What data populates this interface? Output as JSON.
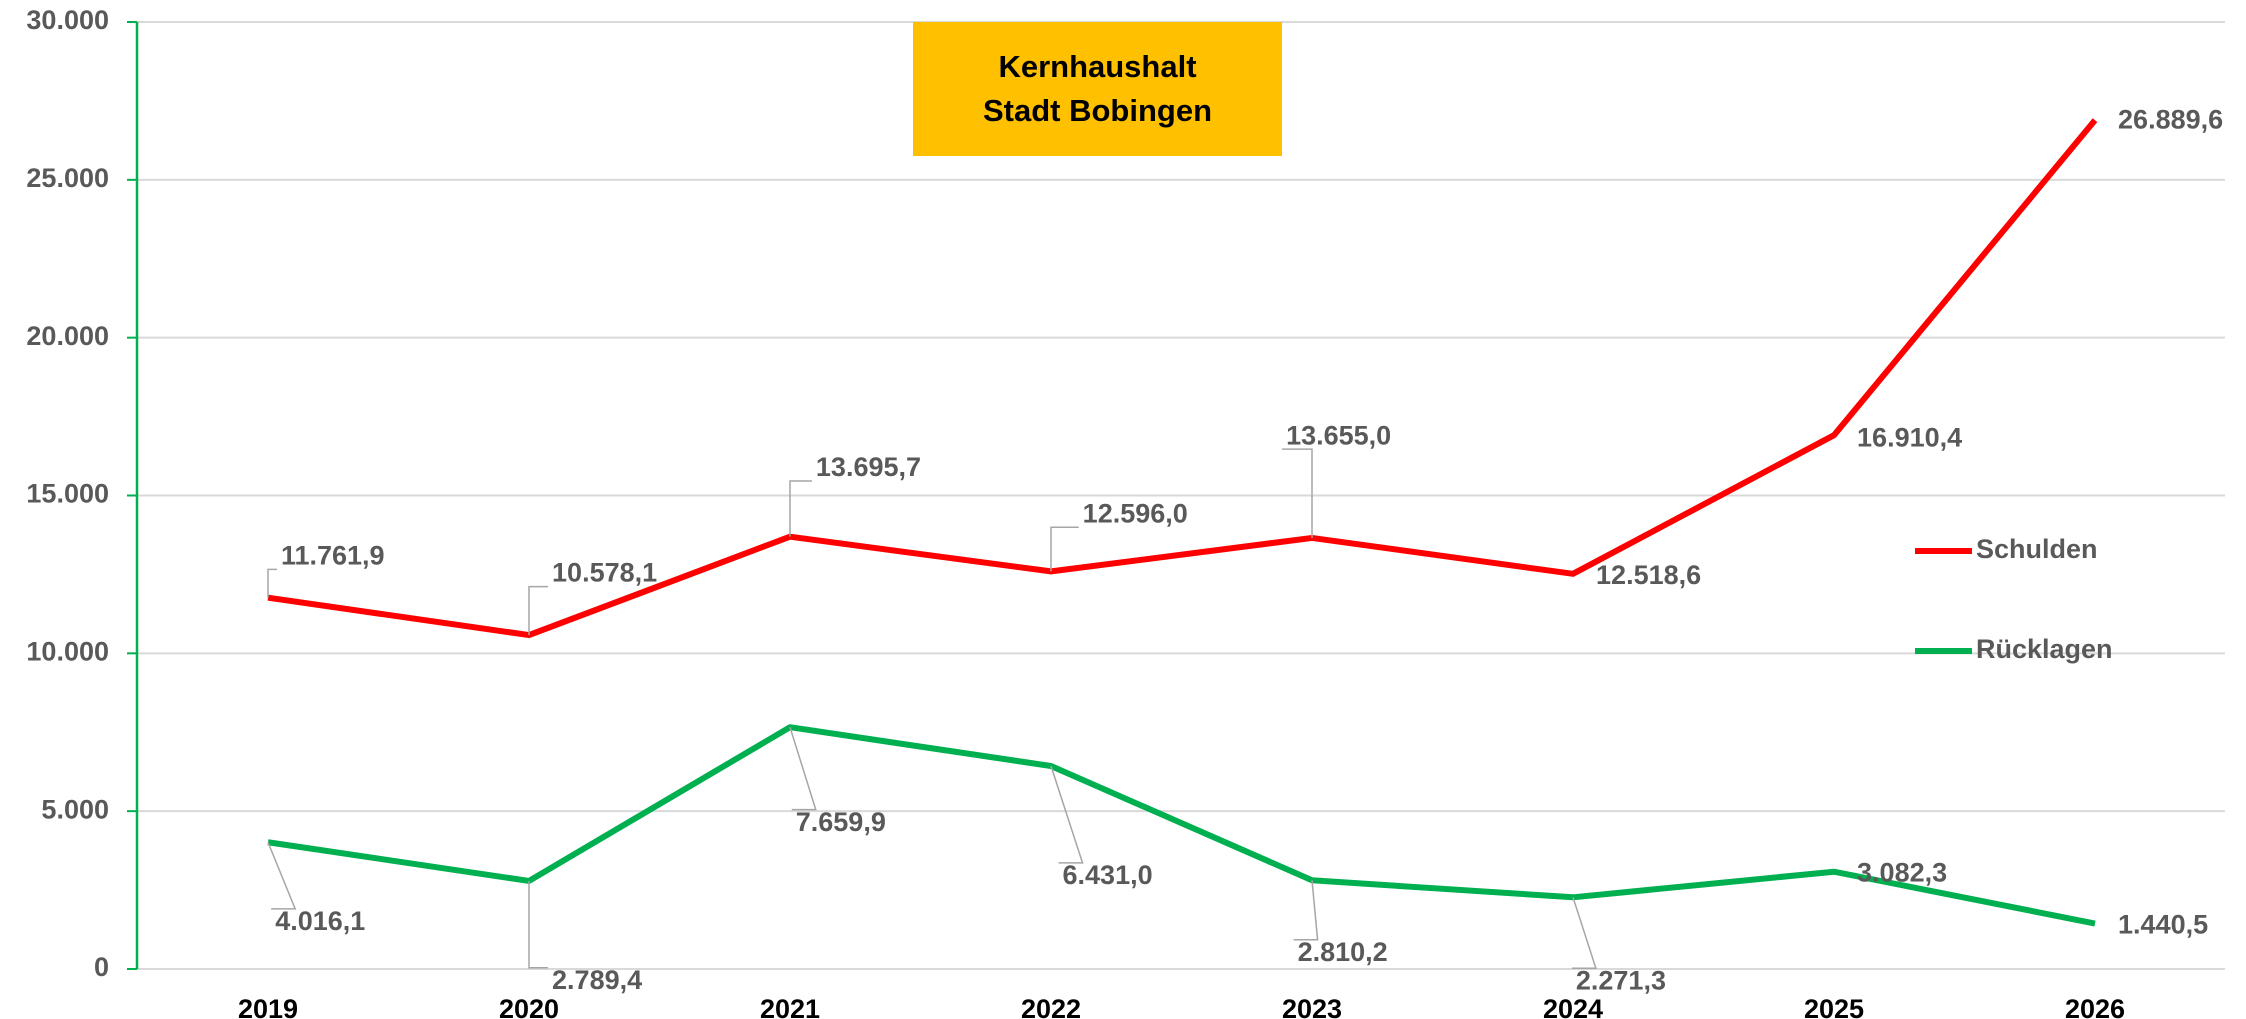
{
  "chart_data": {
    "type": "line",
    "title": "Kernhaushalt Stadt Bobingen",
    "categories": [
      "2019",
      "2020",
      "2021",
      "2022",
      "2023",
      "2024",
      "2025",
      "2026"
    ],
    "series": [
      {
        "name": "Schulden",
        "color": "#ff0000",
        "values": [
          11761.9,
          10578.1,
          13695.7,
          12596.0,
          13655.0,
          12518.6,
          16910.4,
          26889.6
        ],
        "value_labels": [
          "11.761,9",
          "10.578,1",
          "13.695,7",
          "12.596,0",
          "13.655,0",
          "12.518,6",
          "16.910,4",
          "26.889,6"
        ]
      },
      {
        "name": "Rücklagen",
        "color": "#00b050",
        "values": [
          4016.1,
          2789.4,
          7659.9,
          6431.0,
          2810.2,
          2271.3,
          3082.3,
          1440.5
        ],
        "value_labels": [
          "4.016,1",
          "2.789,4",
          "7.659,9",
          "6.431,0",
          "2.810,2",
          "2.271,3",
          "3.082,3",
          "1.440,5"
        ]
      }
    ],
    "ylim": [
      0,
      30000
    ],
    "yticks": [
      0,
      {
        "value": 5000,
        "label": "5.000"
      },
      {
        "value": 10000,
        "label": "10.000"
      },
      {
        "value": 15000,
        "label": "15.000"
      },
      {
        "value": 20000,
        "label": "20.000"
      },
      {
        "value": 25000,
        "label": "25.000"
      },
      {
        "value": 30000,
        "label": "30.000"
      }
    ],
    "grid": true,
    "legend": "right"
  }
}
